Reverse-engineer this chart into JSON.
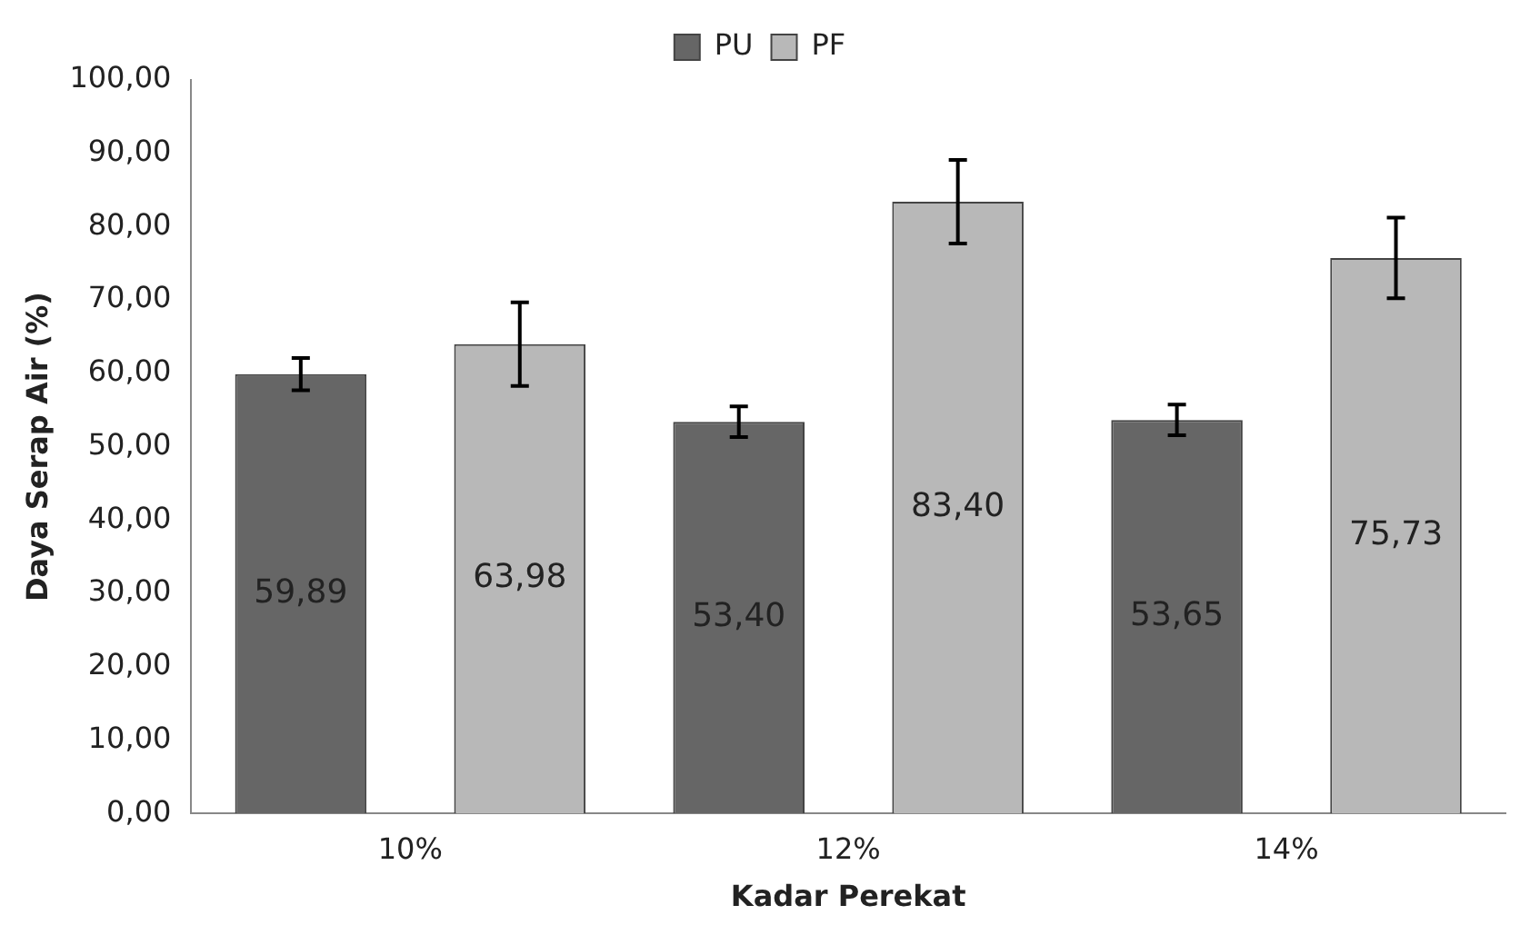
{
  "chart_data": {
    "type": "bar",
    "xlabel": "Kadar Perekat",
    "ylabel": "Daya Serap Air (%)",
    "categories": [
      "10%",
      "12%",
      "14%"
    ],
    "series": [
      {
        "name": "PU",
        "color": "#666666",
        "values": [
          59.89,
          53.4,
          53.65
        ],
        "errors": [
          2.2,
          2.1,
          2.1
        ],
        "value_labels": [
          "59,89",
          "53,40",
          "53,65"
        ]
      },
      {
        "name": "PF",
        "color": "#b8b8b8",
        "values": [
          63.98,
          83.4,
          75.73
        ],
        "errors": [
          5.7,
          5.7,
          5.5
        ],
        "value_labels": [
          "63,98",
          "83,40",
          "75,73"
        ]
      }
    ],
    "ylim": [
      0,
      100
    ],
    "yticks": [
      {
        "value": 0,
        "label": "0,00"
      },
      {
        "value": 10,
        "label": "10,00"
      },
      {
        "value": 20,
        "label": "20,00"
      },
      {
        "value": 30,
        "label": "30,00"
      },
      {
        "value": 40,
        "label": "40,00"
      },
      {
        "value": 50,
        "label": "50,00"
      },
      {
        "value": 60,
        "label": "60,00"
      },
      {
        "value": 70,
        "label": "70,00"
      },
      {
        "value": 80,
        "label": "80,00"
      },
      {
        "value": 90,
        "label": "90,00"
      },
      {
        "value": 100,
        "label": "100,00"
      }
    ],
    "grid": false,
    "legend": "top"
  }
}
